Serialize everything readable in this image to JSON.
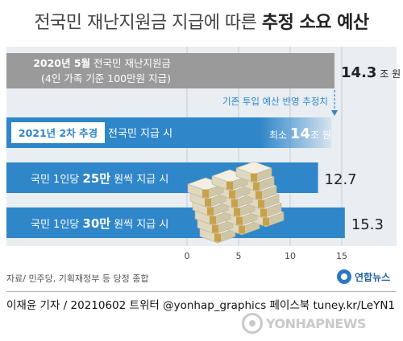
{
  "title": {
    "prefix": "전국민 재난지원금 지급에 따른 ",
    "emphasis": "추정 소요 예산"
  },
  "chart_data": {
    "type": "bar",
    "orientation": "horizontal",
    "x_ticks": [
      0,
      5,
      10,
      15
    ],
    "xlim": [
      0,
      15.8
    ],
    "bars": [
      {
        "label_bold": "2020년 5월",
        "label_rest": " 전국민 재난지원금",
        "label_line2": "(4인 가족 기준 100만원 지급)",
        "value": 14.3,
        "value_text": "14.3",
        "unit": "조 원",
        "color": "#9a9a9a"
      },
      {
        "tag": "2021년 2차 추경",
        "label_rest": " 전국민 지급 시",
        "value": 14,
        "value_prefix": "최소 ",
        "value_text": "14",
        "unit": "조 원",
        "color": "#2f86c9"
      },
      {
        "label_pre": "국민 1인당 ",
        "label_bold": "25만",
        "label_rest": " 원씩 지급 시",
        "value": 12.7,
        "value_text": "12.7",
        "unit": "",
        "color": "#2f86c9"
      },
      {
        "label_pre": "국민 1인당 ",
        "label_bold": "30만",
        "label_rest": " 원씩 지급 시",
        "value": 15.3,
        "value_text": "15.3",
        "unit": "",
        "color": "#2f86c9"
      }
    ],
    "annotation": "기존 투입 예산 반영 추정치"
  },
  "source": "자료/ 민주당, 기획재정부 등 당정 종합",
  "logo_text": "연합뉴스",
  "credit": "이재윤 기자 / 20210602   트위터 @yonhap_graphics  페이스북 tuney.kr/LeYN1",
  "watermark": "YONHAPNEWS",
  "colors": {
    "accent": "#2f86c9",
    "gray_bar": "#9a9a9a",
    "panel": "#e9eef3"
  }
}
